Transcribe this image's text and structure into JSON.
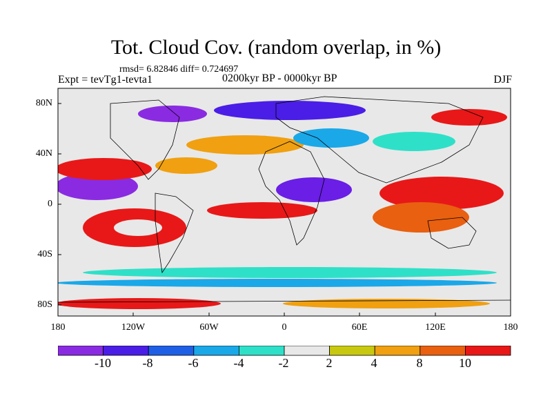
{
  "title": "Tot. Cloud Cov. (random overlap, in %)",
  "stats": "rmsd= 6.82846 diff= 0.724697",
  "experiment": "Expt = tevTg1-tevta1",
  "period": "0200kyr BP - 0000kyr BP",
  "season": "DJF",
  "lat_labels": [
    "80N",
    "40N",
    "0",
    "40S",
    "80S"
  ],
  "lon_labels": [
    "180",
    "120W",
    "60W",
    "0",
    "60E",
    "120E",
    "180"
  ],
  "colorbar": {
    "levels": [
      "-10",
      "-8",
      "-6",
      "-4",
      "-2",
      "2",
      "4",
      "8",
      "10"
    ],
    "colors": [
      "#8a2be2",
      "#4a1ee6",
      "#1f5fe6",
      "#1aa8e8",
      "#2fe0c8",
      "#e8e8e8",
      "#c8c810",
      "#f0a010",
      "#e86010",
      "#e81818"
    ]
  }
}
